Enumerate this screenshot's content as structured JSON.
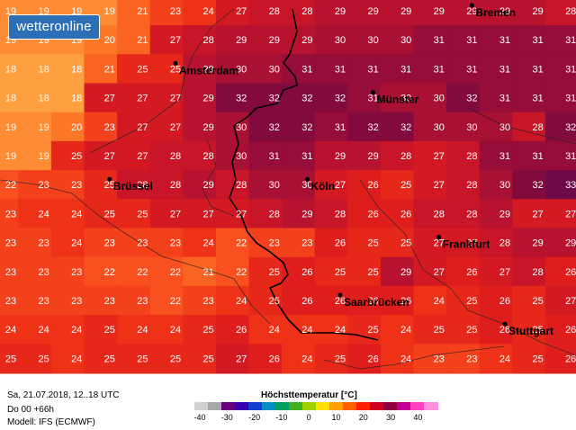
{
  "brand": {
    "logo_text": "wetteronline"
  },
  "info": {
    "line1": "Sa, 21.07.2018, 12..18 UTC",
    "line2": "Do 00 +66h",
    "line3": "Modell: IFS (ECMWF)"
  },
  "legend": {
    "title": "Höchsttemperatur [°C]",
    "ticks": [
      "-40",
      "-30",
      "-20",
      "-10",
      "0",
      "10",
      "20",
      "30",
      "40"
    ],
    "colors": [
      "#d0d0d0",
      "#a8a8a8",
      "#6a0080",
      "#3a00b0",
      "#1040d0",
      "#0090c0",
      "#00a060",
      "#40b020",
      "#a0d000",
      "#ffe000",
      "#ffa000",
      "#ff6000",
      "#ff2000",
      "#d00020",
      "#900040",
      "#c00090",
      "#ff40c0",
      "#ff90e0"
    ]
  },
  "cities": [
    {
      "name": "Bremen",
      "col": 14,
      "row": 0
    },
    {
      "name": "Amsterdam",
      "col": 5,
      "row": 2
    },
    {
      "name": "Münster",
      "col": 11,
      "row": 3
    },
    {
      "name": "Brüssel",
      "col": 3,
      "row": 6
    },
    {
      "name": "Köln",
      "col": 9,
      "row": 6
    },
    {
      "name": "Frankfurt",
      "col": 13,
      "row": 8
    },
    {
      "name": "Saarbrücken",
      "col": 10,
      "row": 10
    },
    {
      "name": "Stuttgart",
      "col": 15,
      "row": 11
    }
  ],
  "grid": {
    "columns": 18,
    "rows": [
      [
        "19",
        "19",
        "19",
        "19",
        "21",
        "23",
        "24",
        "27",
        "28",
        "28",
        "29",
        "29",
        "29",
        "29",
        "29",
        "29",
        "29",
        "28"
      ],
      [
        "19",
        "19",
        "19",
        "20",
        "21",
        "27",
        "28",
        "29",
        "29",
        "29",
        "30",
        "30",
        "30",
        "31",
        "31",
        "31",
        "31",
        "31"
      ],
      [
        "18",
        "18",
        "18",
        "21",
        "25",
        "25",
        "29",
        "30",
        "30",
        "31",
        "31",
        "31",
        "31",
        "31",
        "31",
        "31",
        "31",
        "31"
      ],
      [
        "18",
        "18",
        "18",
        "27",
        "27",
        "27",
        "29",
        "32",
        "32",
        "32",
        "32",
        "31",
        "30",
        "30",
        "32",
        "31",
        "31",
        "31"
      ],
      [
        "19",
        "19",
        "20",
        "23",
        "27",
        "27",
        "29",
        "30",
        "32",
        "32",
        "31",
        "32",
        "32",
        "30",
        "30",
        "30",
        "28",
        "32"
      ],
      [
        "19",
        "19",
        "25",
        "27",
        "27",
        "28",
        "28",
        "30",
        "31",
        "31",
        "29",
        "29",
        "28",
        "27",
        "28",
        "31",
        "31",
        "31"
      ],
      [
        "22",
        "23",
        "23",
        "25",
        "28",
        "28",
        "29",
        "28",
        "30",
        "30",
        "27",
        "26",
        "25",
        "27",
        "28",
        "30",
        "32",
        "33"
      ],
      [
        "23",
        "24",
        "24",
        "25",
        "25",
        "27",
        "27",
        "27",
        "28",
        "29",
        "28",
        "26",
        "26",
        "28",
        "28",
        "29",
        "27",
        "27"
      ],
      [
        "23",
        "23",
        "24",
        "23",
        "23",
        "23",
        "24",
        "22",
        "23",
        "23",
        "26",
        "25",
        "25",
        "27",
        "27",
        "28",
        "29",
        "29"
      ],
      [
        "23",
        "23",
        "23",
        "22",
        "22",
        "22",
        "21",
        "22",
        "25",
        "26",
        "25",
        "25",
        "29",
        "27",
        "26",
        "27",
        "28",
        "26"
      ],
      [
        "23",
        "23",
        "23",
        "23",
        "23",
        "22",
        "23",
        "24",
        "25",
        "26",
        "26",
        "26",
        "26",
        "24",
        "25",
        "26",
        "25",
        "27"
      ],
      [
        "24",
        "24",
        "24",
        "25",
        "24",
        "24",
        "25",
        "26",
        "24",
        "24",
        "24",
        "25",
        "24",
        "25",
        "25",
        "26",
        "25",
        "26"
      ],
      [
        "25",
        "25",
        "24",
        "25",
        "25",
        "25",
        "25",
        "27",
        "26",
        "24",
        "25",
        "26",
        "24",
        "23",
        "23",
        "24",
        "25",
        "26"
      ]
    ]
  }
}
